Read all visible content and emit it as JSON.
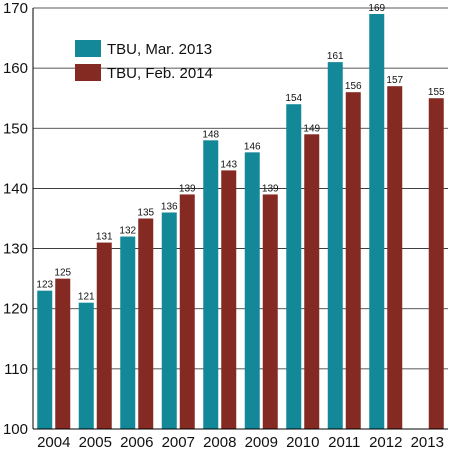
{
  "chart_data": {
    "type": "bar",
    "title": "",
    "xlabel": "",
    "ylabel": "",
    "categories": [
      "2004",
      "2005",
      "2006",
      "2007",
      "2008",
      "2009",
      "2010",
      "2011",
      "2012",
      "2013"
    ],
    "series": [
      {
        "name": "TBU, Mar. 2013",
        "color": "#138898",
        "values": [
          123,
          121,
          132,
          136,
          148,
          146,
          154,
          161,
          169,
          null
        ],
        "labels": [
          "123",
          "121",
          "132",
          "136",
          "148",
          "146",
          "154",
          "161",
          "169",
          ""
        ]
      },
      {
        "name": "TBU, Feb. 2014",
        "color": "#852a22",
        "values": [
          125,
          131,
          135,
          139,
          143,
          139,
          149,
          156,
          157,
          155
        ],
        "labels": [
          "125",
          "131",
          "135",
          "139",
          "143",
          "139",
          "149",
          "156",
          "157",
          "155"
        ]
      }
    ],
    "ylim": [
      100,
      170
    ],
    "yticks": [
      "100",
      "110",
      "120",
      "130",
      "140",
      "150",
      "160",
      "170"
    ],
    "grid": "horizontal",
    "legend_position": "top-left"
  }
}
